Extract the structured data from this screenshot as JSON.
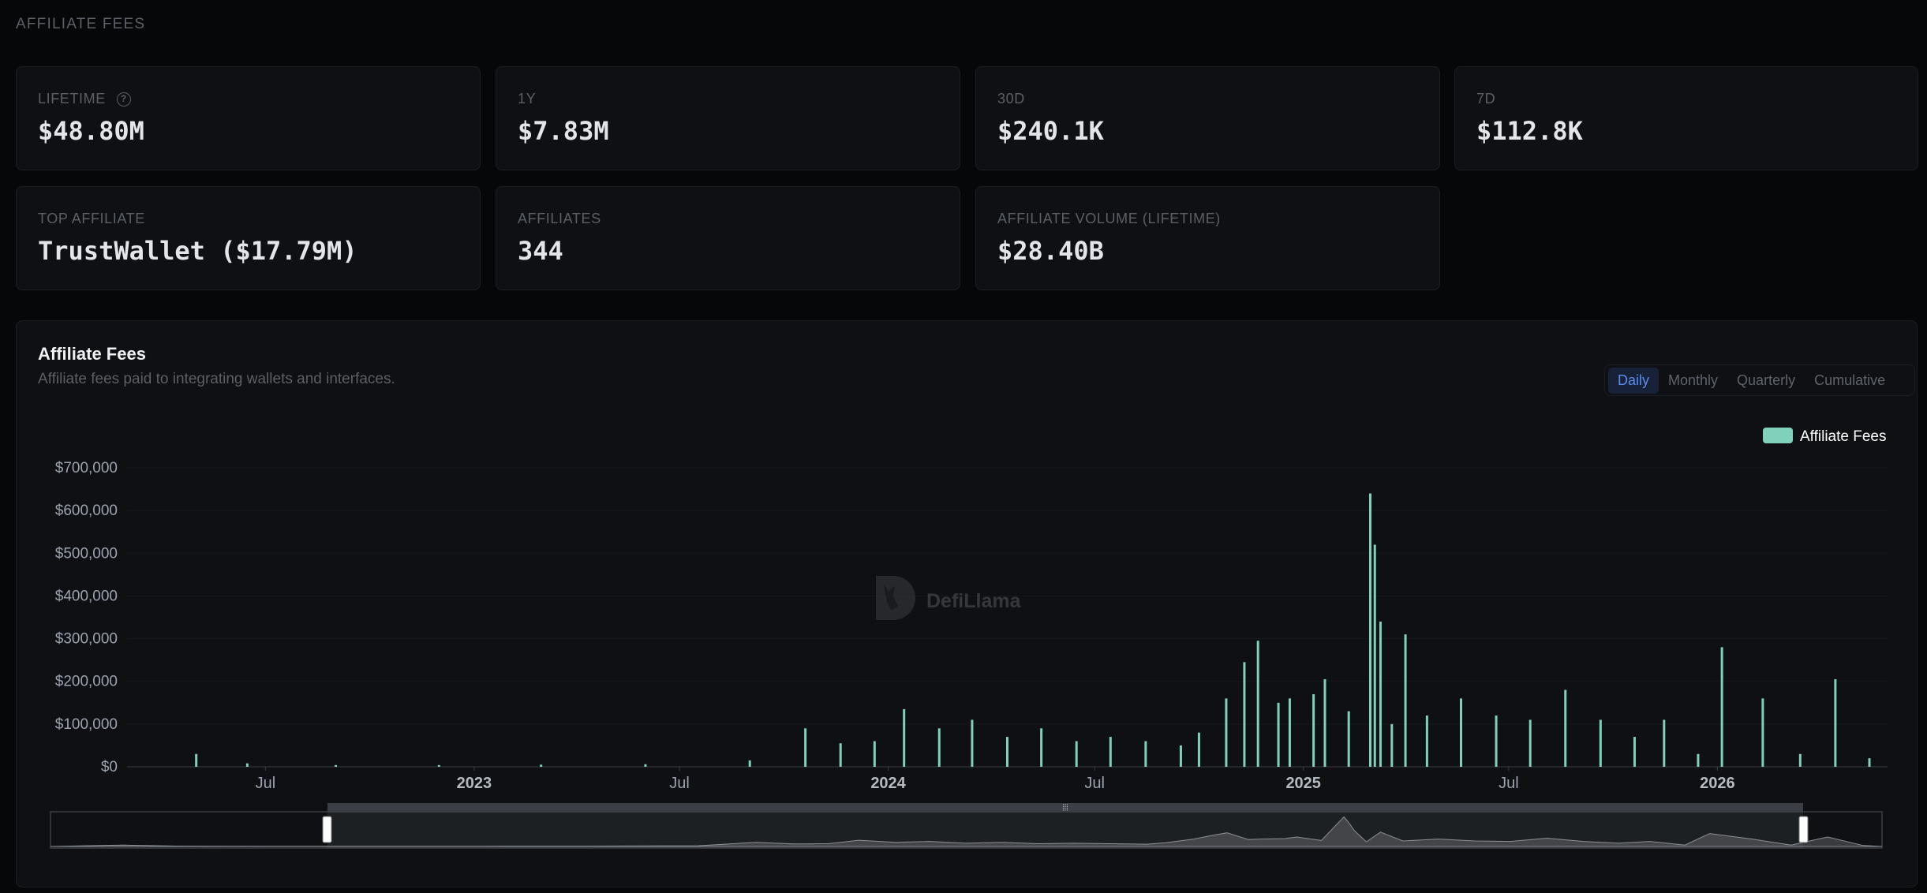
{
  "section": {
    "title": "AFFILIATE FEES"
  },
  "stats": {
    "lifetime": {
      "label": "LIFETIME",
      "value": "$48.80M"
    },
    "one_year": {
      "label": "1Y",
      "value": "$7.83M"
    },
    "thirty_days": {
      "label": "30D",
      "value": "$240.1K"
    },
    "seven_days": {
      "label": "7D",
      "value": "$112.8K"
    },
    "top_affiliate": {
      "label": "TOP AFFILIATE",
      "value": "TrustWallet ($17.79M)"
    },
    "affiliates": {
      "label": "AFFILIATES",
      "value": "344"
    },
    "affiliate_volume": {
      "label": "AFFILIATE VOLUME (LIFETIME)",
      "value": "$28.40B"
    }
  },
  "chart_panel": {
    "title": "Affiliate Fees",
    "subtitle": "Affiliate fees paid to integrating wallets and interfaces.",
    "toggles": [
      "Daily",
      "Monthly",
      "Quarterly",
      "Cumulative"
    ],
    "active_toggle": "Daily",
    "watermark": "DefiLlama"
  },
  "colors": {
    "series": "#7fd1bb",
    "accent": "#5b8def",
    "background": "#060708",
    "panel": "#0e1013"
  },
  "icons": {
    "help": "question-circle-icon",
    "watermark_logo": "llama-logo-icon"
  },
  "chart_data": {
    "type": "bar",
    "title": "Affiliate Fees",
    "legend": "top-right",
    "grid": true,
    "x_range": [
      "2022-03-01",
      "2026-05-31"
    ],
    "ylim": [
      0,
      700000
    ],
    "y_ticks": [
      "$0",
      "$100,000",
      "$200,000",
      "$300,000",
      "$400,000",
      "$500,000",
      "$600,000",
      "$700,000"
    ],
    "x_ticks": [
      "Jul",
      "2023",
      "Jul",
      "2024",
      "Jul",
      "2025",
      "Jul",
      "2026"
    ],
    "series": [
      {
        "name": "Affiliate Fees",
        "points": [
          [
            "2022-05-01",
            30000
          ],
          [
            "2022-06-15",
            8000
          ],
          [
            "2022-09-01",
            4000
          ],
          [
            "2022-12-01",
            4000
          ],
          [
            "2023-03-01",
            5000
          ],
          [
            "2023-06-01",
            6000
          ],
          [
            "2023-09-01",
            15000
          ],
          [
            "2023-10-20",
            90000
          ],
          [
            "2023-11-20",
            55000
          ],
          [
            "2023-12-20",
            60000
          ],
          [
            "2024-01-15",
            135000
          ],
          [
            "2024-02-15",
            90000
          ],
          [
            "2024-03-15",
            110000
          ],
          [
            "2024-04-15",
            70000
          ],
          [
            "2024-05-15",
            90000
          ],
          [
            "2024-06-15",
            60000
          ],
          [
            "2024-07-15",
            70000
          ],
          [
            "2024-08-15",
            60000
          ],
          [
            "2024-09-15",
            50000
          ],
          [
            "2024-10-01",
            80000
          ],
          [
            "2024-10-25",
            160000
          ],
          [
            "2024-11-10",
            245000
          ],
          [
            "2024-11-22",
            295000
          ],
          [
            "2024-12-10",
            150000
          ],
          [
            "2024-12-20",
            160000
          ],
          [
            "2025-01-10",
            170000
          ],
          [
            "2025-01-20",
            205000
          ],
          [
            "2025-02-10",
            130000
          ],
          [
            "2025-03-01",
            640000
          ],
          [
            "2025-03-05",
            520000
          ],
          [
            "2025-03-10",
            340000
          ],
          [
            "2025-03-20",
            100000
          ],
          [
            "2025-04-01",
            310000
          ],
          [
            "2025-04-20",
            120000
          ],
          [
            "2025-05-20",
            160000
          ],
          [
            "2025-06-20",
            120000
          ],
          [
            "2025-07-20",
            110000
          ],
          [
            "2025-08-20",
            180000
          ],
          [
            "2025-09-20",
            110000
          ],
          [
            "2025-10-20",
            70000
          ],
          [
            "2025-11-15",
            110000
          ],
          [
            "2025-12-15",
            30000
          ],
          [
            "2026-01-05",
            280000
          ],
          [
            "2026-02-10",
            160000
          ],
          [
            "2026-03-15",
            30000
          ],
          [
            "2026-04-15",
            205000
          ],
          [
            "2026-05-15",
            20000
          ]
        ]
      }
    ]
  }
}
